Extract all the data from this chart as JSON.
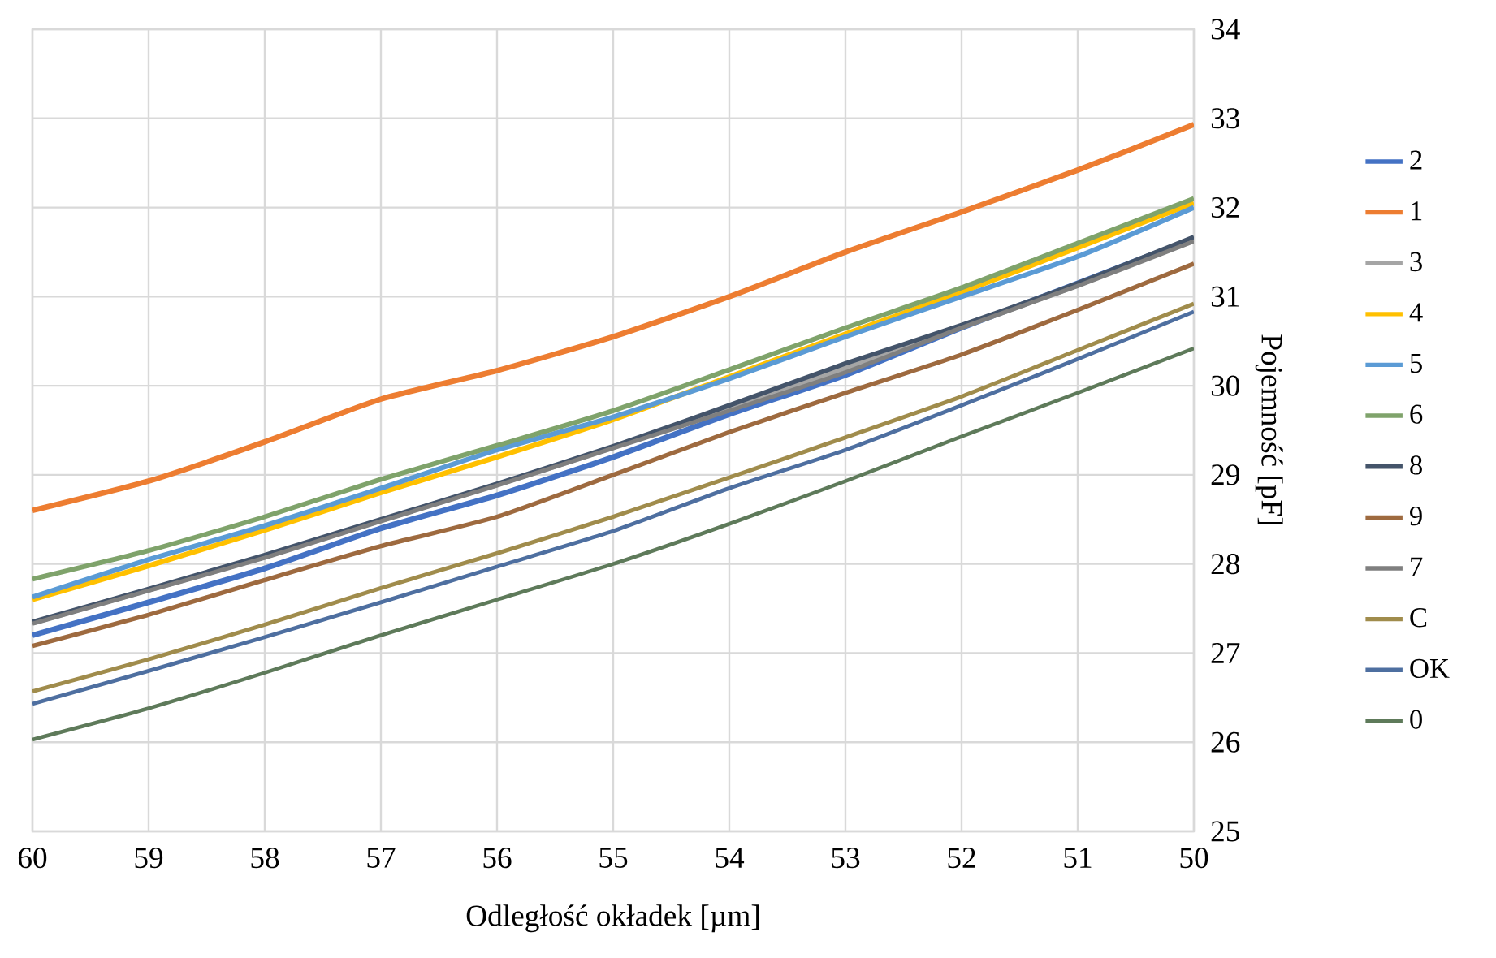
{
  "chart_data": {
    "type": "line",
    "xlabel": "Odległość okładek [µm]",
    "ylabel": "Pojemność [pF]",
    "x": [
      60,
      59,
      58,
      57,
      56,
      55,
      54,
      53,
      52,
      51,
      50
    ],
    "series": [
      {
        "name": "2",
        "color": "#4472c4",
        "values": [
          27.2,
          27.57,
          27.95,
          28.4,
          28.77,
          29.2,
          29.68,
          30.12,
          30.65,
          31.15,
          31.65
        ]
      },
      {
        "name": "1",
        "color": "#ed7d31",
        "values": [
          28.6,
          28.93,
          29.37,
          29.85,
          30.17,
          30.55,
          31.0,
          31.5,
          31.95,
          32.42,
          32.93
        ]
      },
      {
        "name": "3",
        "color": "#a5a5a5",
        "values": [
          27.34,
          27.71,
          28.08,
          28.49,
          28.89,
          29.31,
          29.75,
          30.2,
          30.66,
          31.13,
          31.64
        ]
      },
      {
        "name": "4",
        "color": "#ffc000",
        "values": [
          27.6,
          27.98,
          28.38,
          28.8,
          29.2,
          29.62,
          30.1,
          30.58,
          31.05,
          31.55,
          32.05
        ]
      },
      {
        "name": "5",
        "color": "#5b9bd5",
        "values": [
          27.63,
          28.05,
          28.43,
          28.85,
          29.28,
          29.65,
          30.08,
          30.55,
          31.0,
          31.45,
          32.0
        ]
      },
      {
        "name": "6",
        "color": "#7fa36b",
        "values": [
          27.83,
          28.15,
          28.53,
          28.95,
          29.33,
          29.72,
          30.18,
          30.65,
          31.1,
          31.6,
          32.1
        ]
      },
      {
        "name": "8",
        "color": "#44546a",
        "values": [
          27.35,
          27.72,
          28.1,
          28.5,
          28.9,
          29.32,
          29.78,
          30.25,
          30.68,
          31.15,
          31.67
        ]
      },
      {
        "name": "9",
        "color": "#9e6a3f",
        "values": [
          27.08,
          27.43,
          27.82,
          28.2,
          28.53,
          29.0,
          29.48,
          29.92,
          30.35,
          30.85,
          31.37
        ]
      },
      {
        "name": "7",
        "color": "#7f7f7f",
        "values": [
          27.33,
          27.7,
          28.07,
          28.48,
          28.88,
          29.3,
          29.72,
          30.15,
          30.65,
          31.12,
          31.62
        ]
      },
      {
        "name": "C",
        "color": "#a08c4c",
        "values": [
          26.57,
          26.93,
          27.32,
          27.73,
          28.12,
          28.53,
          28.97,
          29.42,
          29.88,
          30.4,
          30.92
        ]
      },
      {
        "name": "OK",
        "color": "#4e6fa0",
        "values": [
          26.43,
          26.8,
          27.18,
          27.57,
          27.97,
          28.37,
          28.85,
          29.28,
          29.78,
          30.3,
          30.83
        ]
      },
      {
        "name": "0",
        "color": "#5e7a5a",
        "values": [
          26.03,
          26.38,
          26.78,
          27.2,
          27.6,
          28.0,
          28.45,
          28.93,
          29.43,
          29.92,
          30.42
        ]
      }
    ],
    "xlim": [
      60,
      50
    ],
    "ylim": [
      25,
      34
    ],
    "xticks": [
      60,
      59,
      58,
      57,
      56,
      55,
      54,
      53,
      52,
      51,
      50
    ],
    "yticks": [
      25,
      26,
      27,
      28,
      29,
      30,
      31,
      32,
      33,
      34
    ],
    "grid": true,
    "legend": "right",
    "marker": "none"
  }
}
